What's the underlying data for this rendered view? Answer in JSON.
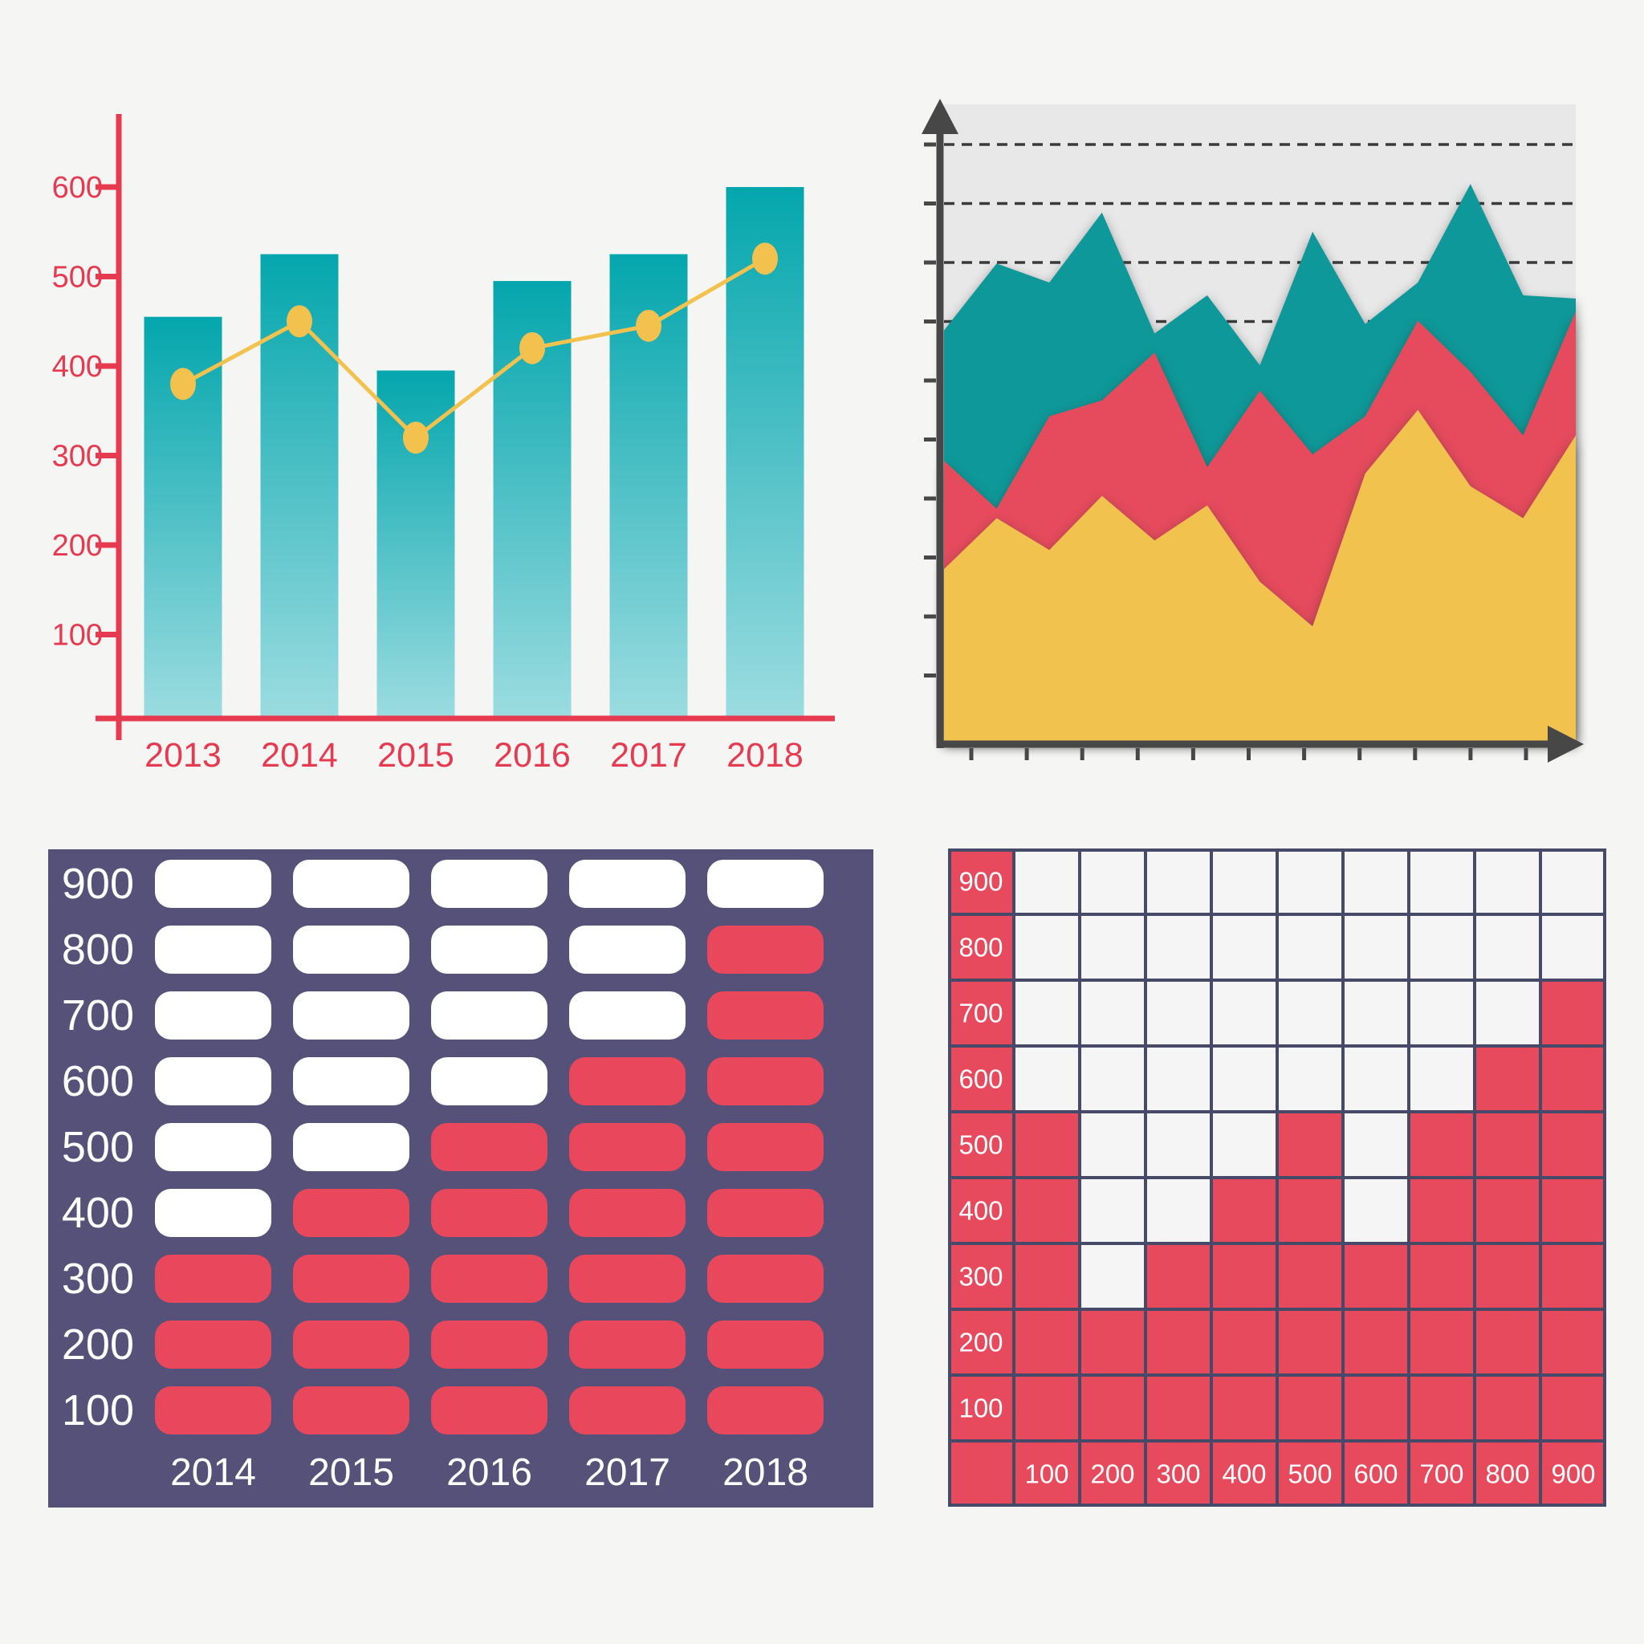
{
  "page_background": "#F5F5F4",
  "chart_data": [
    {
      "id": "bar-line-combo",
      "type": "bar",
      "overlay": "line",
      "title": "",
      "categories": [
        "2013",
        "2014",
        "2015",
        "2016",
        "2017",
        "2018"
      ],
      "series": [
        {
          "name": "bars",
          "type": "bar",
          "values": [
            455,
            525,
            395,
            495,
            525,
            600
          ]
        },
        {
          "name": "trend-line",
          "type": "line",
          "values": [
            380,
            450,
            320,
            420,
            445,
            520
          ]
        }
      ],
      "ytick_labels": [
        "600",
        "500",
        "400",
        "300",
        "200",
        "100"
      ],
      "yticks": [
        600,
        500,
        400,
        300,
        200,
        100
      ],
      "ylim": [
        0,
        680
      ],
      "grid": "off",
      "legend": "none",
      "colors": {
        "axis": "#E63A50",
        "tick_label": "#E63A50",
        "bar_top": "#04A6AD",
        "bar_bottom": "#9BDCE0",
        "line": "#F2C14E"
      }
    },
    {
      "id": "stacked-area",
      "type": "area",
      "title": "",
      "x_points": 13,
      "series": [
        {
          "name": "yellow-layer",
          "color": "#F1C24D",
          "top_fraction": [
            0.27,
            0.35,
            0.3,
            0.385,
            0.315,
            0.37,
            0.25,
            0.18,
            0.42,
            0.52,
            0.4,
            0.35,
            0.48
          ]
        },
        {
          "name": "red-layer",
          "color": "#E54B5D",
          "top_fraction": [
            0.44,
            0.365,
            0.51,
            0.535,
            0.61,
            0.43,
            0.55,
            0.45,
            0.51,
            0.66,
            0.58,
            0.48,
            0.675
          ]
        },
        {
          "name": "teal-layer",
          "color": "#0F9899",
          "top_fraction": [
            0.645,
            0.75,
            0.72,
            0.83,
            0.64,
            0.7,
            0.59,
            0.8,
            0.655,
            0.72,
            0.875,
            0.7,
            0.695
          ]
        }
      ],
      "dashed_gridlines": 4,
      "y_tick_count": 10,
      "x_tick_count": 11,
      "grid": "dashed-top",
      "legend": "none",
      "colors": {
        "plot_bg": "#E9E8E8",
        "axis": "#474747",
        "gridline": "#3A3A3A"
      }
    },
    {
      "id": "pill-matrix",
      "type": "bar",
      "style": "waffle-pills",
      "title": "",
      "categories": [
        "2014",
        "2015",
        "2016",
        "2017",
        "2018"
      ],
      "values": [
        300,
        400,
        500,
        600,
        800
      ],
      "row_labels": [
        "900",
        "800",
        "700",
        "600",
        "500",
        "400",
        "300",
        "200",
        "100"
      ],
      "row_values": [
        900,
        800,
        700,
        600,
        500,
        400,
        300,
        200,
        100
      ],
      "grid": "off",
      "legend": "none",
      "colors": {
        "panel": "#555178",
        "filled": "#E9485C",
        "empty": "#FFFFFF",
        "label": "#FFFFFF"
      }
    },
    {
      "id": "cell-grid",
      "type": "heatmap",
      "style": "waffle-cells",
      "title": "",
      "categories": [
        "100",
        "200",
        "300",
        "400",
        "500",
        "600",
        "700",
        "800",
        "900"
      ],
      "values": [
        500,
        200,
        300,
        400,
        500,
        300,
        500,
        600,
        700
      ],
      "row_labels": [
        "900",
        "800",
        "700",
        "600",
        "500",
        "400",
        "300",
        "200",
        "100"
      ],
      "row_values": [
        900,
        800,
        700,
        600,
        500,
        400,
        300,
        200,
        100
      ],
      "grid": "on",
      "legend": "none",
      "colors": {
        "filled": "#E74A5C",
        "empty": "#F6F5F5",
        "line": "#464A68",
        "label": "#FFFFFF"
      }
    }
  ]
}
